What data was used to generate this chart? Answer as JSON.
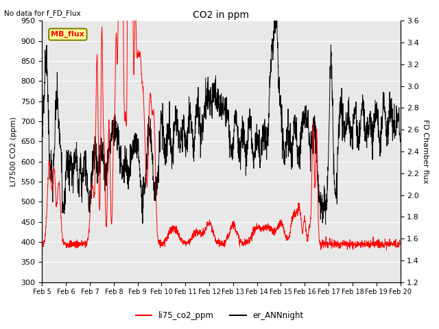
{
  "title": "CO2 in ppm",
  "top_left_text": "No data for f_FD_Flux",
  "ylabel_left": "LI7500 CO2 (ppm)",
  "ylabel_right": "FD Chamber flux",
  "ylim_left": [
    300,
    950
  ],
  "ylim_right": [
    1.2,
    3.6
  ],
  "yticks_left": [
    300,
    350,
    400,
    450,
    500,
    550,
    600,
    650,
    700,
    750,
    800,
    850,
    900,
    950
  ],
  "yticks_right": [
    1.2,
    1.4,
    1.6,
    1.8,
    2.0,
    2.2,
    2.4,
    2.6,
    2.8,
    3.0,
    3.2,
    3.4,
    3.6
  ],
  "xlabel_dates": [
    "Feb 5",
    "Feb 6",
    "Feb 7",
    "Feb 8",
    "Feb 9",
    "Feb 10",
    "Feb 11",
    "Feb 12",
    "Feb 13",
    "Feb 14",
    "Feb 15",
    "Feb 16",
    "Feb 17",
    "Feb 18",
    "Feb 19",
    "Feb 20"
  ],
  "legend_entries": [
    "li75_co2_ppm",
    "er_ANNnight"
  ],
  "legend_colors": [
    "red",
    "black"
  ],
  "line1_color": "red",
  "line2_color": "black",
  "mb_flux_box_color": "#ffff99",
  "mb_flux_text_color": "red",
  "mb_flux_border_color": "#808000",
  "background_color": "#e8e8e8",
  "grid_color": "white",
  "figsize": [
    6.4,
    4.8
  ],
  "dpi": 100
}
